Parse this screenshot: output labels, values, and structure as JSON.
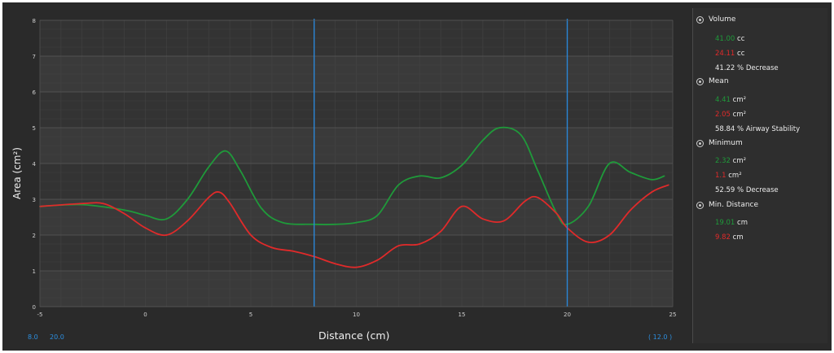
{
  "chart_data": {
    "type": "line",
    "xlabel": "Distance (cm)",
    "ylabel": "Area (cm²)",
    "xlim": [
      -5,
      25
    ],
    "ylim": [
      0,
      8
    ],
    "x_ticks": [
      "-5",
      "0",
      "5",
      "10",
      "15",
      "20",
      "25"
    ],
    "y_ticks": [
      "0",
      "1",
      "2",
      "3",
      "4",
      "5",
      "6",
      "7",
      "8"
    ],
    "grid": true,
    "vertical_markers": [
      8.0,
      20.0
    ],
    "series": [
      {
        "color": "#1f9a3a",
        "x": [
          -5,
          -3,
          -1,
          0,
          1,
          2,
          3,
          3.8,
          4.5,
          5.5,
          6.5,
          8,
          9,
          10,
          11,
          12,
          13,
          14,
          15,
          16,
          16.8,
          17.8,
          18.6,
          19.5,
          20,
          21,
          22,
          23,
          24,
          24.6
        ],
        "y": [
          2.8,
          2.85,
          2.7,
          2.55,
          2.45,
          3.0,
          3.9,
          4.35,
          3.8,
          2.75,
          2.35,
          2.3,
          2.3,
          2.35,
          2.55,
          3.4,
          3.65,
          3.6,
          3.95,
          4.65,
          5.0,
          4.8,
          3.8,
          2.6,
          2.3,
          2.8,
          4.0,
          3.75,
          3.55,
          3.65
        ]
      },
      {
        "color": "#e02a2a",
        "x": [
          -5,
          -3,
          -2,
          -1,
          0,
          1,
          2,
          3,
          3.5,
          4,
          5,
          6,
          7,
          8,
          9,
          10,
          11,
          12,
          13,
          14,
          15,
          16,
          17,
          18,
          18.6,
          19.5,
          20,
          21,
          22,
          23,
          24,
          24.8
        ],
        "y": [
          2.8,
          2.88,
          2.88,
          2.6,
          2.2,
          2.0,
          2.4,
          3.05,
          3.2,
          2.9,
          2.0,
          1.65,
          1.55,
          1.4,
          1.2,
          1.1,
          1.3,
          1.7,
          1.75,
          2.1,
          2.8,
          2.45,
          2.4,
          2.95,
          3.05,
          2.6,
          2.2,
          1.8,
          2.0,
          2.7,
          3.2,
          3.4
        ]
      }
    ]
  },
  "bottom_labels": {
    "left": "8.0",
    "left2": "20.0",
    "right": "( 12.0 )"
  },
  "sidebar": {
    "sections": [
      {
        "title": "Volume",
        "rows": [
          {
            "value": "41.00",
            "value_color": "green",
            "unit": "cc"
          },
          {
            "value": "24.11",
            "value_color": "red",
            "unit": "cc"
          },
          {
            "text": "41.22 % Decrease"
          }
        ]
      },
      {
        "title": "Mean",
        "rows": [
          {
            "value": "4.41",
            "value_color": "green",
            "unit": "cm²"
          },
          {
            "value": "2.05",
            "value_color": "red",
            "unit": "cm²"
          },
          {
            "text": "58.84 % Airway Stability"
          }
        ]
      },
      {
        "title": "Minimum",
        "rows": [
          {
            "value": "2.32",
            "value_color": "green",
            "unit": "cm²"
          },
          {
            "value": "1.1",
            "value_color": "red",
            "unit": "cm²"
          },
          {
            "text": "52.59 % Decrease"
          }
        ]
      },
      {
        "title": "Min. Distance",
        "rows": [
          {
            "value": "19.01",
            "value_color": "green",
            "unit": "cm"
          },
          {
            "value": "9.82",
            "value_color": "red",
            "unit": "cm"
          }
        ]
      }
    ]
  }
}
